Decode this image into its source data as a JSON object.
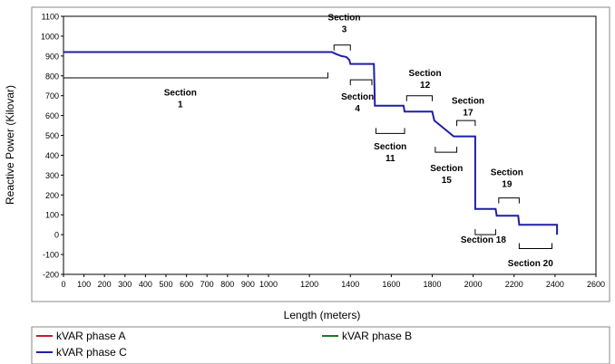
{
  "chart_data": {
    "type": "line",
    "title": "",
    "xlabel": "Length (meters)",
    "ylabel": "Reactive Power (Kilovar)",
    "xlim": [
      0,
      2600
    ],
    "ylim": [
      -200,
      1100
    ],
    "grid": false,
    "x_ticks": [
      "0",
      "100",
      "200",
      "300",
      "400",
      "500",
      "600",
      "700",
      "800",
      "900",
      "1000",
      "1200",
      "1400",
      "1600",
      "1800",
      "2000",
      "2200",
      "2400",
      "2600"
    ],
    "y_ticks": [
      "1100",
      "1000",
      "900",
      "800",
      "700",
      "600",
      "500",
      "400",
      "300",
      "200",
      "100",
      "0",
      "-100",
      "-200"
    ],
    "legend": {
      "placement": "bottom",
      "entries": [
        {
          "label": "kVAR phase A",
          "color": "#d11a1a"
        },
        {
          "label": "kVAR phase B",
          "color": "#1a7a1a"
        },
        {
          "label": "kVAR phase C",
          "color": "#1f1fa6"
        }
      ]
    },
    "series": [
      {
        "name": "kVAR phase C",
        "color": "#1f1fa6",
        "points": [
          [
            0,
            920
          ],
          [
            1310,
            920
          ],
          [
            1330,
            910
          ],
          [
            1355,
            900
          ],
          [
            1380,
            895
          ],
          [
            1395,
            880
          ],
          [
            1400,
            860
          ],
          [
            1515,
            860
          ],
          [
            1520,
            650
          ],
          [
            1660,
            650
          ],
          [
            1665,
            620
          ],
          [
            1800,
            620
          ],
          [
            1810,
            575
          ],
          [
            1905,
            495
          ],
          [
            2010,
            495
          ],
          [
            2010,
            130
          ],
          [
            2110,
            130
          ],
          [
            2115,
            95
          ],
          [
            2220,
            95
          ],
          [
            2225,
            50
          ],
          [
            2410,
            50
          ],
          [
            2410,
            0
          ]
        ]
      }
    ],
    "annotations": [
      {
        "line1": "Section",
        "line2": "1",
        "x_data": 570,
        "y_data": 700
      },
      {
        "line1": "Section",
        "line2": "3",
        "x_data": 1370,
        "y_data": 1080
      },
      {
        "line1": "Section",
        "line2": "4",
        "x_data": 1435,
        "y_data": 680
      },
      {
        "line1": "Section",
        "line2": "11",
        "x_data": 1595,
        "y_data": 430
      },
      {
        "line1": "Section",
        "line2": "12",
        "x_data": 1765,
        "y_data": 800
      },
      {
        "line1": "Section",
        "line2": "15",
        "x_data": 1870,
        "y_data": 320
      },
      {
        "line1": "Section",
        "line2": "17",
        "x_data": 1975,
        "y_data": 660
      },
      {
        "line1": "Section",
        "line2": "19",
        "x_data": 2165,
        "y_data": 300
      },
      {
        "line1": "Section 18",
        "line2": "",
        "x_data": 2050,
        "y_data": -40
      },
      {
        "line1": "Section 20",
        "line2": "",
        "x_data": 2280,
        "y_data": -160
      }
    ],
    "brackets": [
      {
        "x1": 0,
        "x2": 1290,
        "y": 790,
        "dir": "up",
        "for": "Section 1"
      },
      {
        "x1": 1320,
        "x2": 1400,
        "y": 955,
        "dir": "down",
        "for": "Section 3"
      },
      {
        "x1": 1400,
        "x2": 1505,
        "y": 780,
        "dir": "down",
        "for": "Section 4"
      },
      {
        "x1": 1525,
        "x2": 1665,
        "y": 510,
        "dir": "up",
        "for": "Section 11"
      },
      {
        "x1": 1675,
        "x2": 1800,
        "y": 700,
        "dir": "down",
        "for": "Section 12"
      },
      {
        "x1": 1815,
        "x2": 1920,
        "y": 415,
        "dir": "up",
        "for": "Section 15"
      },
      {
        "x1": 1920,
        "x2": 2010,
        "y": 575,
        "dir": "down",
        "for": "Section 17"
      },
      {
        "x1": 2010,
        "x2": 2110,
        "y": 0,
        "dir": "up",
        "for": "Section 18"
      },
      {
        "x1": 2125,
        "x2": 2225,
        "y": 185,
        "dir": "down",
        "for": "Section 19"
      },
      {
        "x1": 2225,
        "x2": 2385,
        "y": -70,
        "dir": "up",
        "for": "Section 20"
      }
    ]
  }
}
